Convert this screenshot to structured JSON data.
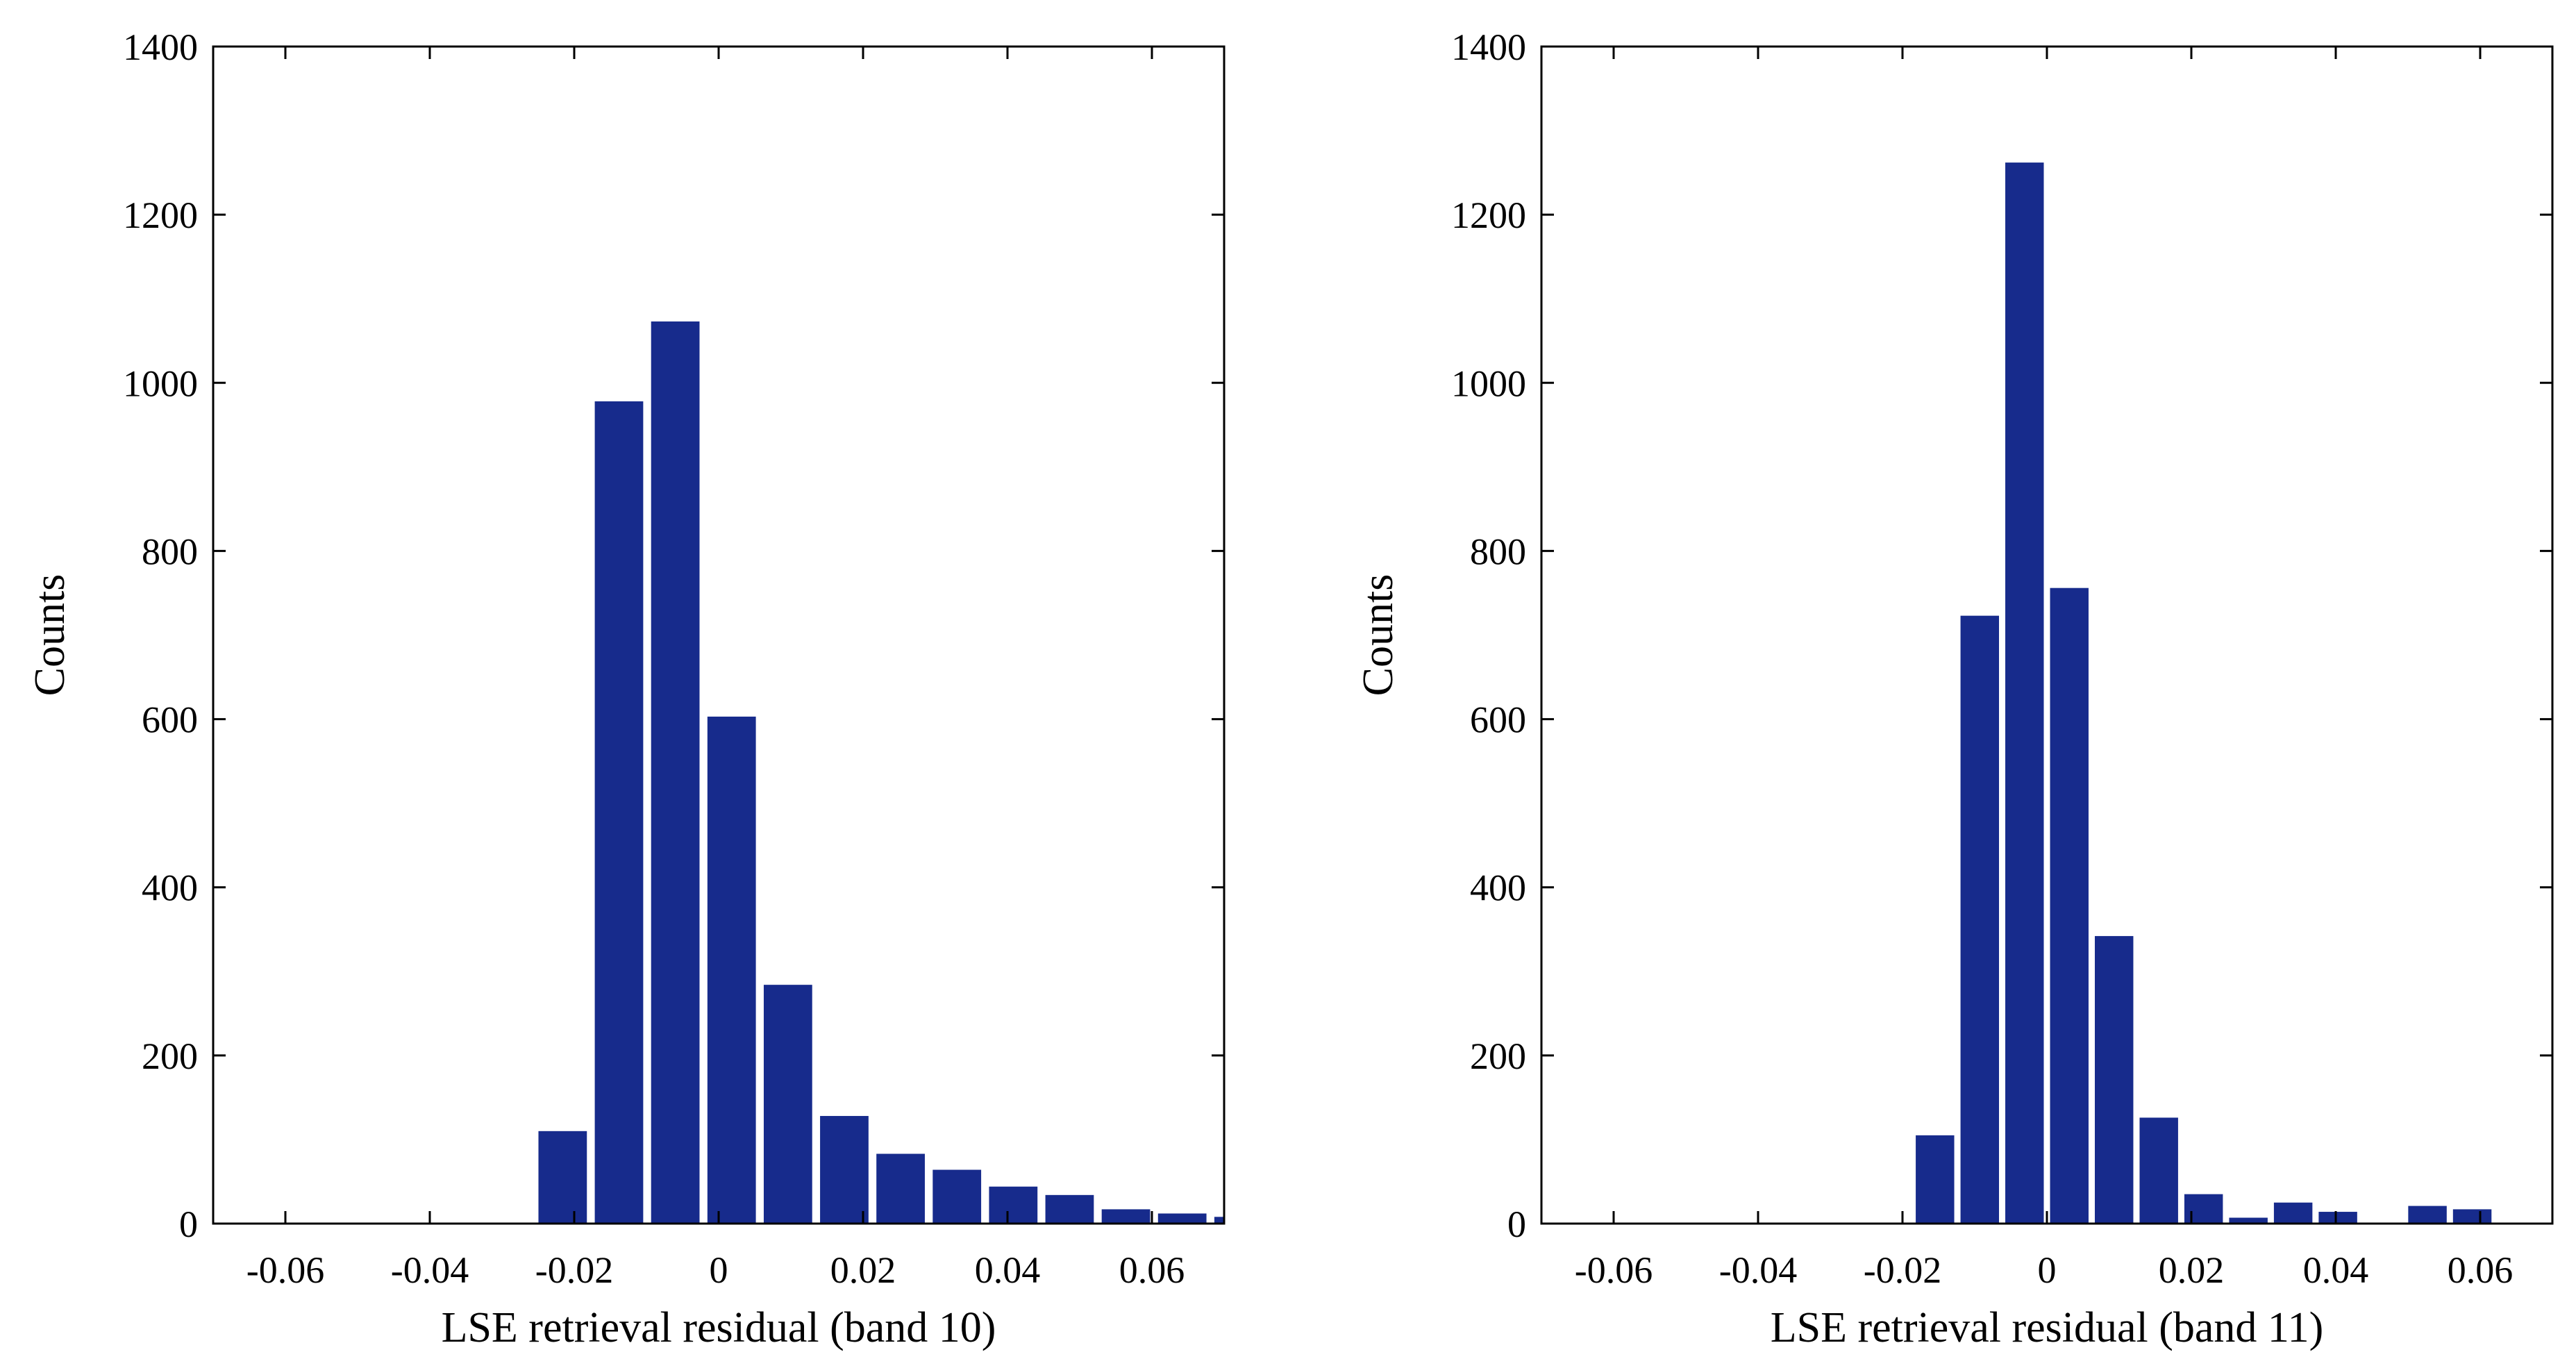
{
  "chart_data": [
    {
      "type": "bar",
      "title": "",
      "xlabel": "LSE retrieval residual (band 10)",
      "ylabel": "Counts",
      "xlim": [
        -0.07,
        0.07
      ],
      "ylim": [
        0,
        1400
      ],
      "xticks": [
        -0.06,
        -0.04,
        -0.02,
        0,
        0.02,
        0.04,
        0.06
      ],
      "xtick_labels": [
        "-0.06",
        "-0.04",
        "-0.02",
        "0",
        "0.02",
        "0.04",
        "0.06"
      ],
      "yticks": [
        0,
        200,
        400,
        600,
        800,
        1000,
        1200,
        1400
      ],
      "ytick_labels": [
        "0",
        "200",
        "400",
        "600",
        "800",
        "1000",
        "1200",
        "1400"
      ],
      "bin_width": 0.0078,
      "color": "#172b8c",
      "x": [
        -0.0216,
        -0.0138,
        -0.006,
        0.0018,
        0.0096,
        0.0174,
        0.0252,
        0.033,
        0.0408,
        0.0486,
        0.0564,
        0.0642,
        0.072
      ],
      "values": [
        110,
        978,
        1073,
        603,
        284,
        128,
        83,
        64,
        44,
        34,
        17,
        12,
        8
      ]
    },
    {
      "type": "bar",
      "title": "",
      "xlabel": "LSE retrieval residual (band 11)",
      "ylabel": "Counts",
      "xlim": [
        -0.07,
        0.07
      ],
      "ylim": [
        0,
        1400
      ],
      "xticks": [
        -0.06,
        -0.04,
        -0.02,
        0,
        0.02,
        0.04,
        0.06
      ],
      "xtick_labels": [
        "-0.06",
        "-0.04",
        "-0.02",
        "0",
        "0.02",
        "0.04",
        "0.06"
      ],
      "yticks": [
        0,
        200,
        400,
        600,
        800,
        1000,
        1200,
        1400
      ],
      "ytick_labels": [
        "0",
        "200",
        "400",
        "600",
        "800",
        "1000",
        "1200",
        "1400"
      ],
      "bin_width": 0.0062,
      "color": "#172b8c",
      "x": [
        -0.0155,
        -0.0093,
        -0.0031,
        0.0031,
        0.0093,
        0.0155,
        0.0217,
        0.0279,
        0.0341,
        0.0403,
        0.0465,
        0.0527,
        0.0589
      ],
      "values": [
        105,
        723,
        1262,
        756,
        342,
        126,
        35,
        7,
        25,
        14,
        0,
        21,
        17
      ]
    }
  ]
}
